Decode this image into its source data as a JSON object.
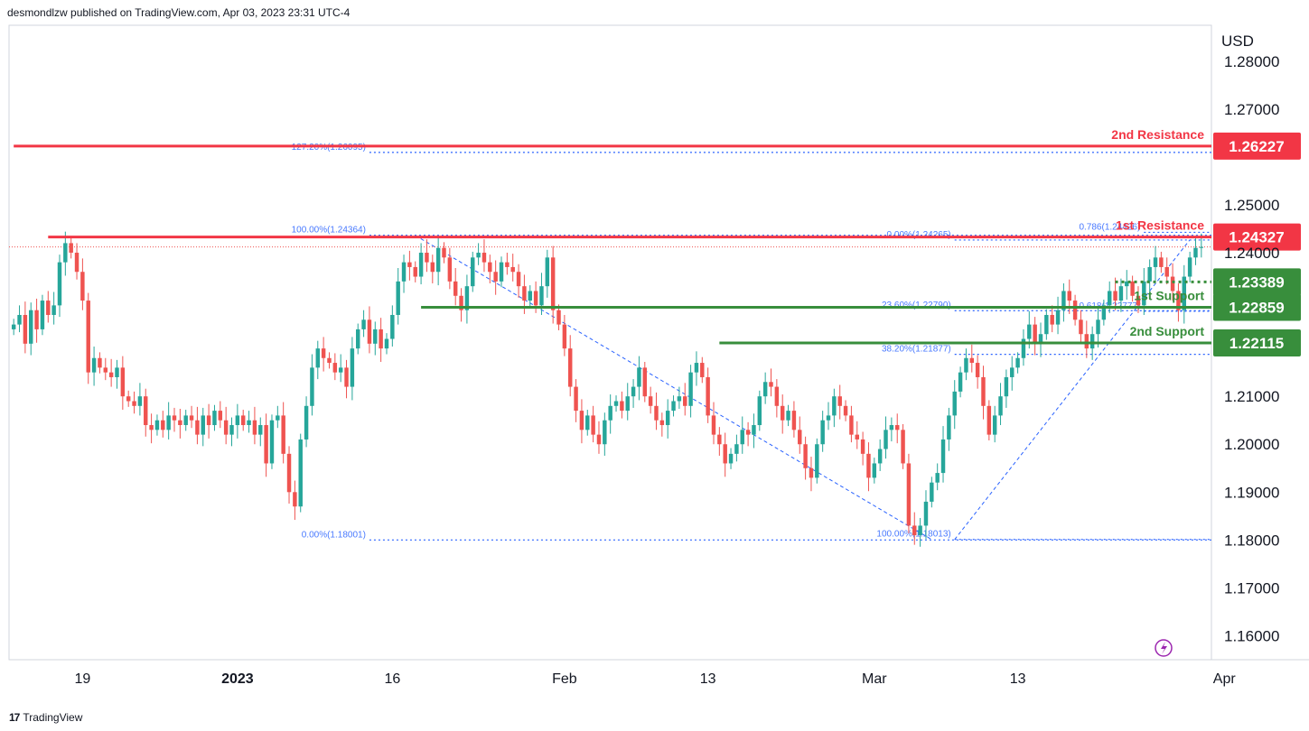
{
  "header": {
    "publisher_text": "desmondlzw published on TradingView.com, Apr 03, 2023 23:31 UTC-4"
  },
  "footer": {
    "brand": "TradingView",
    "logo_glyph": "17"
  },
  "colors": {
    "up": "#26a69a",
    "down": "#ef5350",
    "support": "#388e3c",
    "resistance": "#f23645",
    "fib": "#2962ff",
    "last_price": "#ef5350"
  },
  "chart_data": {
    "type": "candlestick",
    "currency": "USD",
    "ylim": [
      1.155,
      1.2875
    ],
    "y_ticks": [
      "1.28000",
      "1.27000",
      "1.25000",
      "1.24000",
      "1.21000",
      "1.20000",
      "1.19000",
      "1.18000",
      "1.17000",
      "1.16000"
    ],
    "x_ticks": [
      {
        "label": "19",
        "bold": false,
        "idx": 12
      },
      {
        "label": "2023",
        "bold": true,
        "idx": 39
      },
      {
        "label": "16",
        "bold": false,
        "idx": 66
      },
      {
        "label": "Feb",
        "bold": false,
        "idx": 96
      },
      {
        "label": "13",
        "bold": false,
        "idx": 121
      },
      {
        "label": "Mar",
        "bold": false,
        "idx": 150
      },
      {
        "label": "13",
        "bold": false,
        "idx": 175
      },
      {
        "label": "Apr",
        "bold": false,
        "idx": 211
      }
    ],
    "levels": [
      {
        "name": "2nd Resistance",
        "price": 1.26227,
        "label": "1.26227",
        "kind": "resistance",
        "from_idx": 0
      },
      {
        "name": "1st Resistance",
        "price": 1.24327,
        "label": "1.24327",
        "kind": "resistance",
        "from_idx": 6
      },
      {
        "name": "",
        "price": 1.23389,
        "label": "1.23389",
        "kind": "support_dotted",
        "from_idx": 192
      },
      {
        "name": "1st Support",
        "price": 1.22859,
        "label": "1.22859",
        "kind": "support",
        "from_idx": 71
      },
      {
        "name": "2nd Support",
        "price": 1.22115,
        "label": "1.22115",
        "kind": "support",
        "from_idx": 123
      }
    ],
    "fib_labels": [
      {
        "text": "127.20%(1.26095)",
        "price": 1.26095,
        "from_idx": 62
      },
      {
        "text": "100.00%(1.24364)",
        "price": 1.24364,
        "from_idx": 62
      },
      {
        "text": "0.00%(1.18001)",
        "price": 1.18001,
        "from_idx": 62
      },
      {
        "text": "0.00%(1.24265)",
        "price": 1.24265,
        "from_idx": 164
      },
      {
        "text": "23.60%(1.22790)",
        "price": 1.2279,
        "from_idx": 164
      },
      {
        "text": "38.20%(1.21877)",
        "price": 1.21877,
        "from_idx": 164
      },
      {
        "text": "100.00%(1.18013)",
        "price": 1.18013,
        "from_idx": 164
      },
      {
        "text": "0.786(1.24426)",
        "price": 1.24426,
        "from_idx": 197
      },
      {
        "text": "0.618(1.22777)",
        "price": 1.22777,
        "from_idx": 197
      }
    ],
    "last_price": 1.2412,
    "candles_close": [
      1.225,
      1.227,
      1.221,
      1.228,
      1.224,
      1.23,
      1.227,
      1.229,
      1.238,
      1.242,
      1.24,
      1.236,
      1.23,
      1.215,
      1.218,
      1.216,
      1.215,
      1.214,
      1.216,
      1.21,
      1.209,
      1.208,
      1.21,
      1.204,
      1.203,
      1.205,
      1.203,
      1.206,
      1.205,
      1.204,
      1.206,
      1.205,
      1.202,
      1.206,
      1.204,
      1.207,
      1.205,
      1.202,
      1.204,
      1.206,
      1.204,
      1.205,
      1.202,
      1.204,
      1.196,
      1.205,
      1.206,
      1.198,
      1.19,
      1.187,
      1.201,
      1.208,
      1.216,
      1.22,
      1.218,
      1.217,
      1.215,
      1.216,
      1.212,
      1.22,
      1.224,
      1.226,
      1.221,
      1.224,
      1.22,
      1.222,
      1.227,
      1.234,
      1.238,
      1.237,
      1.235,
      1.24,
      1.238,
      1.236,
      1.241,
      1.239,
      1.234,
      1.231,
      1.228,
      1.233,
      1.239,
      1.24,
      1.238,
      1.236,
      1.234,
      1.238,
      1.237,
      1.236,
      1.233,
      1.23,
      1.232,
      1.229,
      1.233,
      1.239,
      1.228,
      1.225,
      1.22,
      1.212,
      1.207,
      1.203,
      1.206,
      1.202,
      1.2,
      1.205,
      1.208,
      1.209,
      1.207,
      1.21,
      1.212,
      1.216,
      1.21,
      1.208,
      1.205,
      1.204,
      1.207,
      1.209,
      1.21,
      1.208,
      1.215,
      1.217,
      1.214,
      1.206,
      1.202,
      1.2,
      1.196,
      1.198,
      1.2,
      1.203,
      1.202,
      1.204,
      1.21,
      1.213,
      1.212,
      1.208,
      1.205,
      1.207,
      1.203,
      1.2,
      1.195,
      1.193,
      1.2,
      1.205,
      1.206,
      1.21,
      1.208,
      1.206,
      1.202,
      1.201,
      1.198,
      1.193,
      1.196,
      1.199,
      1.203,
      1.204,
      1.203,
      1.196,
      1.183,
      1.181,
      1.183,
      1.188,
      1.192,
      1.194,
      1.201,
      1.206,
      1.211,
      1.215,
      1.218,
      1.217,
      1.214,
      1.208,
      1.202,
      1.206,
      1.21,
      1.214,
      1.216,
      1.218,
      1.222,
      1.225,
      1.221,
      1.223,
      1.227,
      1.225,
      1.228,
      1.232,
      1.23,
      1.226,
      1.223,
      1.22,
      1.223,
      1.226,
      1.229,
      1.232,
      1.23,
      1.233,
      1.234,
      1.231,
      1.229,
      1.234,
      1.237,
      1.239,
      1.237,
      1.235,
      1.232,
      1.228,
      1.235,
      1.239,
      1.241,
      1.2412
    ]
  }
}
